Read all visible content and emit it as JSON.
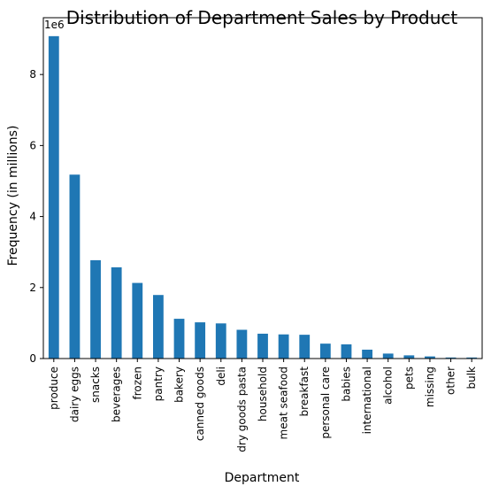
{
  "chart_data": {
    "type": "bar",
    "title": "Distribution of Department Sales by Product",
    "xlabel": "Department",
    "ylabel": "Frequency (in millions)",
    "y_offset_label": "1e6",
    "y_scale": 1000000,
    "ylim": [
      0,
      9600000
    ],
    "yticks": [
      0,
      2000000,
      4000000,
      6000000,
      8000000
    ],
    "ytick_labels": [
      "0",
      "2",
      "4",
      "6",
      "8"
    ],
    "bar_color": "#1f77b4",
    "categories": [
      "produce",
      "dairy eggs",
      "snacks",
      "beverages",
      "frozen",
      "pantry",
      "bakery",
      "canned goods",
      "deli",
      "dry goods pasta",
      "household",
      "meat seafood",
      "breakfast",
      "personal care",
      "babies",
      "international",
      "alcohol",
      "pets",
      "missing",
      "other",
      "bulk"
    ],
    "values": [
      9080000,
      5180000,
      2770000,
      2570000,
      2130000,
      1790000,
      1120000,
      1020000,
      990000,
      810000,
      700000,
      680000,
      670000,
      420000,
      400000,
      250000,
      140000,
      90000,
      60000,
      30000,
      30000
    ],
    "grid": false,
    "legend": false
  }
}
